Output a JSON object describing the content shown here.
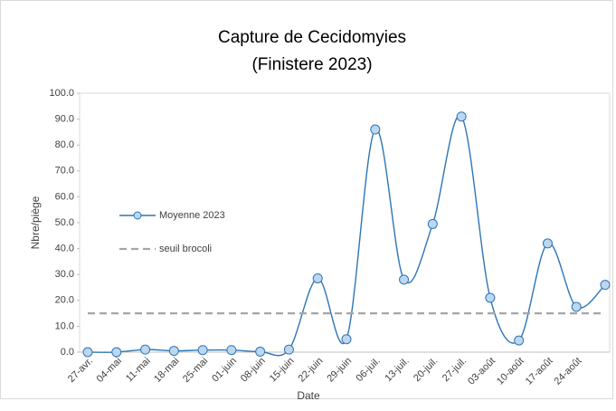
{
  "chart_data": {
    "type": "line",
    "title": [
      "Capture de Cecidomyies",
      "(Finistere 2023)"
    ],
    "x_label": "Date",
    "y_label": "Nbre/piège",
    "categories": [
      "27-avr.",
      "04-mai",
      "11-mai",
      "18-mai",
      "25-mai",
      "01-juin",
      "08-juin",
      "15-juin",
      "22-juin",
      "29-juin",
      "06-juil.",
      "13-juil.",
      "20-juil.",
      "27-juil.",
      "03-août",
      "10-août",
      "17-août",
      "24-août",
      null
    ],
    "series": [
      {
        "name": "Moyenne 2023",
        "color": "#2e75b6",
        "marker_fill": "#bdd7ee",
        "smooth": true,
        "values": [
          0,
          0,
          1,
          0.5,
          0.8,
          0.8,
          0.2,
          1,
          28.5,
          5,
          86,
          28,
          49.5,
          91,
          21,
          4.5,
          42,
          17.5,
          26
        ]
      },
      {
        "name": "seuil brocoli",
        "color": "#a6a6a6",
        "dashed": true,
        "values": [
          15,
          15,
          15,
          15,
          15,
          15,
          15,
          15,
          15,
          15,
          15,
          15,
          15,
          15,
          15,
          15,
          15,
          15,
          15
        ]
      }
    ],
    "ylim": [
      0,
      100
    ],
    "yticks": [
      {
        "value": 0,
        "label": "0.0"
      },
      {
        "value": 10,
        "label": "10.0"
      },
      {
        "value": 20,
        "label": "20.0"
      },
      {
        "value": 30,
        "label": "30.0"
      },
      {
        "value": 40,
        "label": "40.0"
      },
      {
        "value": 50,
        "label": "50.0"
      },
      {
        "value": 60,
        "label": "60.0"
      },
      {
        "value": 70,
        "label": "70.0"
      },
      {
        "value": 80,
        "label": "80.0"
      },
      {
        "value": 90,
        "label": "90.0"
      },
      {
        "value": 100,
        "label": "100.0"
      }
    ],
    "grid": false,
    "legend": "left"
  }
}
